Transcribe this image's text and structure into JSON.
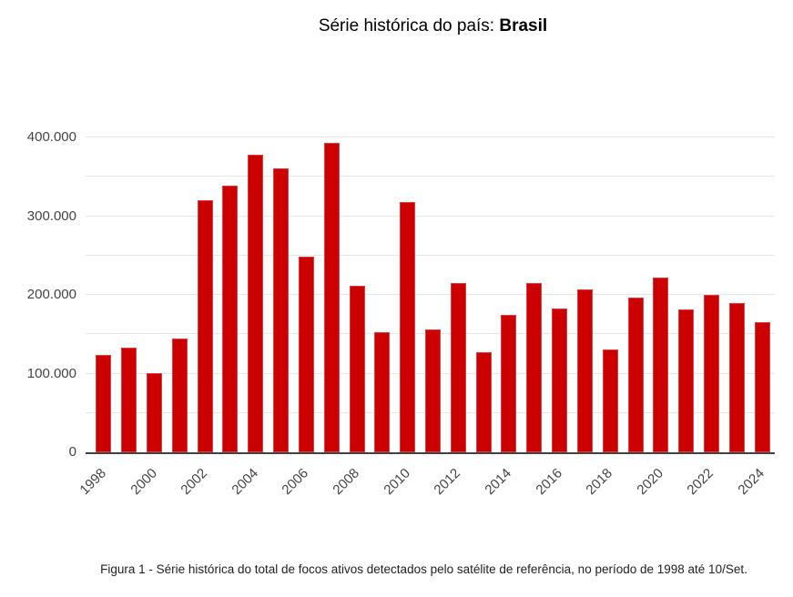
{
  "title": {
    "prefix": "Série histórica do país: ",
    "country": "Brasil"
  },
  "caption": "Figura 1 - Série histórica do total de focos ativos detectados pelo satélite de referência, no período de 1998 até 10/Set.",
  "colors": {
    "bar": "#cc0000",
    "gridline": "#e6e6e6",
    "axis_line": "#424242",
    "axis_text": "#444444",
    "title_text": "#000000"
  },
  "chart_data": {
    "type": "bar",
    "title": "Série histórica do país: Brasil",
    "series_name": "Focos ativos detectados pelo satélite de referência",
    "categories": [
      "1998",
      "1999",
      "2000",
      "2001",
      "2002",
      "2003",
      "2004",
      "2005",
      "2006",
      "2007",
      "2008",
      "2009",
      "2010",
      "2011",
      "2012",
      "2013",
      "2014",
      "2015",
      "2016",
      "2017",
      "2018",
      "2019",
      "2020",
      "2021",
      "2022",
      "2023",
      "2024"
    ],
    "values": [
      123500,
      133000,
      100500,
      145000,
      320500,
      339000,
      378500,
      361000,
      249000,
      393000,
      211500,
      153000,
      317500,
      156000,
      215500,
      127500,
      174500,
      215500,
      183000,
      206500,
      131000,
      196000,
      221500,
      181500,
      199500,
      189500,
      165500
    ],
    "xlabel": "",
    "ylabel": "",
    "ylim": [
      0,
      400000
    ],
    "y_major_ticks": [
      {
        "value": 0,
        "label": "0"
      },
      {
        "value": 100000,
        "label": "100.000"
      },
      {
        "value": 200000,
        "label": "200.000"
      },
      {
        "value": 300000,
        "label": "300.000"
      },
      {
        "value": 400000,
        "label": "400.000"
      }
    ],
    "y_minor_step": 50000,
    "x_label_every": 2,
    "x_tick_labels": [
      "1998",
      "2000",
      "2002",
      "2004",
      "2006",
      "2008",
      "2010",
      "2012",
      "2014",
      "2016",
      "2018",
      "2020",
      "2022",
      "2024"
    ],
    "grid": true,
    "legend": "none"
  }
}
